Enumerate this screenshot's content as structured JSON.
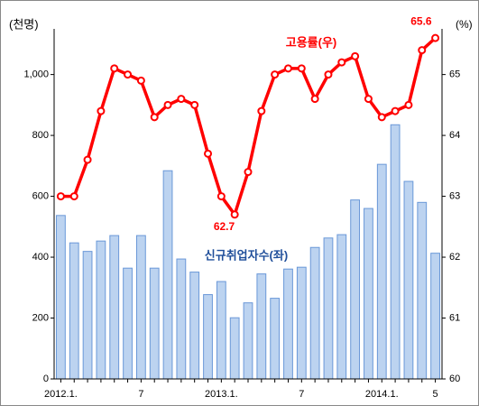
{
  "chart_data": {
    "type": "bar-line",
    "y_label": "(천명)",
    "y2_label": "(%)",
    "categories": [
      "2012.1.",
      null,
      null,
      null,
      null,
      null,
      "7",
      null,
      null,
      null,
      null,
      null,
      "2013.1.",
      null,
      null,
      null,
      null,
      null,
      "7",
      null,
      null,
      null,
      null,
      null,
      "2014.1.",
      null,
      null,
      null,
      "5"
    ],
    "series": [
      {
        "name": "신규취업자수(좌)",
        "type": "bar",
        "color": "#bcd3f0",
        "edge": "#6a98d8",
        "axis": "y",
        "values": [
          537,
          447,
          419,
          453,
          471,
          364,
          471,
          364,
          684,
          394,
          351,
          277,
          320,
          201,
          250,
          345,
          265,
          361,
          367,
          432,
          463,
          474,
          588,
          560,
          705,
          835,
          649,
          580,
          413
        ]
      },
      {
        "name": "고용률(우)",
        "type": "line",
        "color": "#ff0000",
        "axis": "y2",
        "values": [
          63.0,
          63.0,
          63.6,
          64.4,
          65.1,
          65.0,
          64.9,
          64.3,
          64.5,
          64.6,
          64.5,
          63.7,
          63.0,
          62.7,
          63.4,
          64.4,
          65.0,
          65.1,
          65.1,
          64.6,
          65.0,
          65.2,
          65.3,
          64.6,
          64.3,
          64.4,
          64.5,
          65.4,
          65.6
        ],
        "value_labels": [
          null,
          null,
          null,
          null,
          null,
          null,
          null,
          null,
          null,
          null,
          null,
          null,
          null,
          "62.7",
          null,
          null,
          null,
          null,
          null,
          null,
          null,
          null,
          null,
          null,
          null,
          null,
          null,
          null,
          "65.6"
        ]
      }
    ],
    "ylim": [
      0,
      1150
    ],
    "yticks": [
      0,
      200,
      400,
      600,
      800,
      {
        "value": 1000,
        "label": "1,000"
      }
    ],
    "y2lim": [
      60,
      65.75
    ],
    "y2ticks": [
      60,
      61,
      62,
      63,
      64,
      65
    ]
  }
}
